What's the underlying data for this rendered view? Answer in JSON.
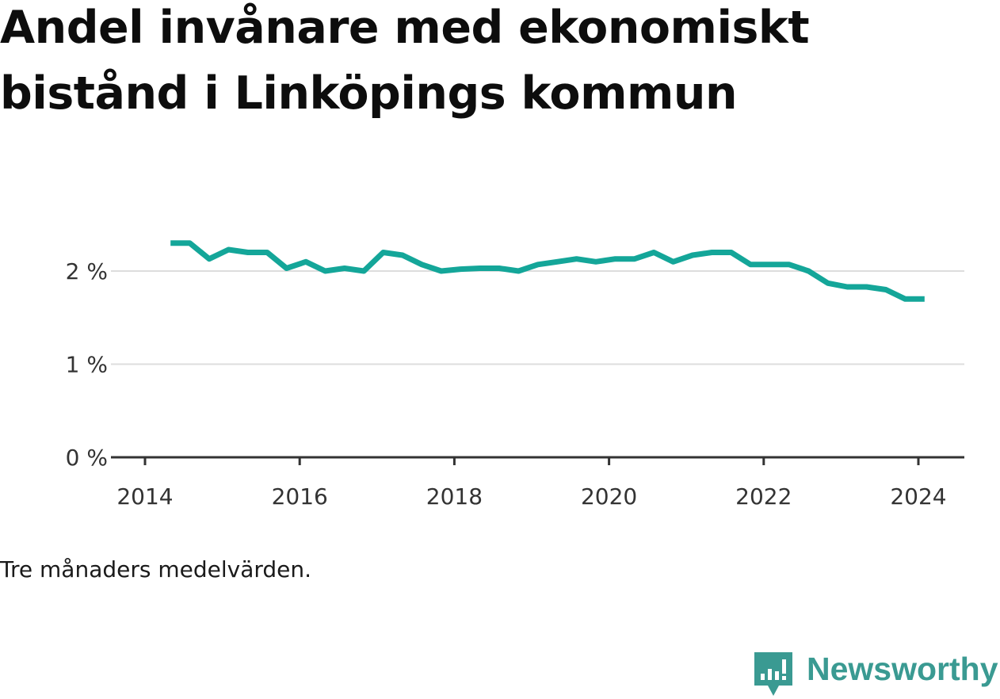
{
  "title": "Andel invånare med ekonomiskt bistånd i Linköpings kommun",
  "note": "Tre månaders medelvärden.",
  "brand": {
    "name": "Newsworthy",
    "icon": "newsworthy-logo-icon",
    "color": "#3a9a92"
  },
  "colors": {
    "line": "#14a699",
    "grid": "#dddddd",
    "axis": "#333333"
  },
  "chart_data": {
    "type": "line",
    "title": "Andel invånare med ekonomiskt bistånd i Linköpings kommun",
    "xlabel": "",
    "ylabel": "",
    "ylim": [
      0,
      2.6
    ],
    "xlim": [
      2014.0,
      2024.3
    ],
    "yticks": [
      0,
      1,
      2
    ],
    "ytick_labels": [
      "0 %",
      "1 %",
      "2 %"
    ],
    "xticks": [
      2014,
      2016,
      2018,
      2020,
      2022,
      2024
    ],
    "xtick_labels": [
      "2014",
      "2016",
      "2018",
      "2020",
      "2022",
      "2024"
    ],
    "grid": true,
    "series": [
      {
        "name": "Andel invånare med ekonomiskt bistånd",
        "x": [
          2014.33,
          2014.58,
          2014.83,
          2015.08,
          2015.33,
          2015.58,
          2015.83,
          2016.08,
          2016.33,
          2016.58,
          2016.83,
          2017.08,
          2017.33,
          2017.58,
          2017.83,
          2018.08,
          2018.33,
          2018.58,
          2018.83,
          2019.08,
          2019.33,
          2019.58,
          2019.83,
          2020.08,
          2020.33,
          2020.58,
          2020.83,
          2021.08,
          2021.33,
          2021.58,
          2021.83,
          2022.08,
          2022.33,
          2022.58,
          2022.83,
          2023.08,
          2023.33,
          2023.58,
          2023.83,
          2024.08
        ],
        "values": [
          2.3,
          2.3,
          2.13,
          2.23,
          2.2,
          2.2,
          2.03,
          2.1,
          2.0,
          2.03,
          2.0,
          2.2,
          2.17,
          2.07,
          2.0,
          2.02,
          2.03,
          2.03,
          2.0,
          2.07,
          2.1,
          2.13,
          2.1,
          2.13,
          2.13,
          2.2,
          2.1,
          2.17,
          2.2,
          2.2,
          2.07,
          2.07,
          2.07,
          2.0,
          1.87,
          1.83,
          1.83,
          1.8,
          1.7,
          1.7
        ]
      }
    ]
  }
}
